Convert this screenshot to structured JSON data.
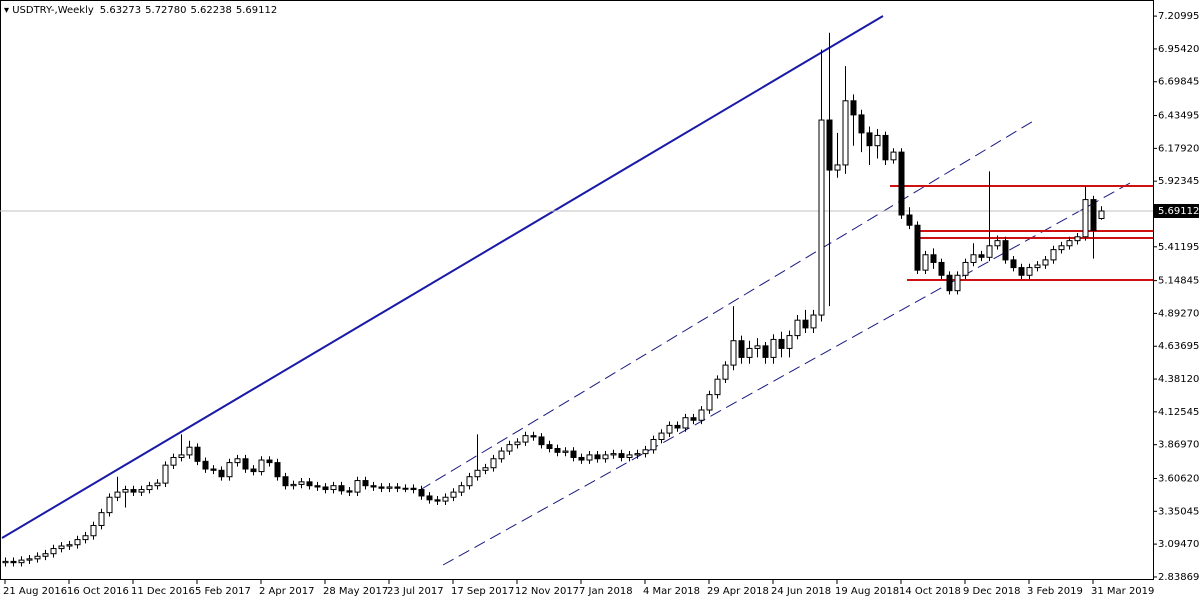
{
  "chart_data": {
    "type": "candlestick",
    "title": "USDTRY-,Weekly",
    "header_ohlc": [
      "5.63273",
      "5.72780",
      "5.62238",
      "5.69112"
    ],
    "current_price": {
      "value": 5.69112,
      "label": "5.69112"
    },
    "ylim": [
      2.815,
      7.32
    ],
    "yticks": [
      {
        "value": 7.20995,
        "label": "7.20995"
      },
      {
        "value": 6.9542,
        "label": "6.95420"
      },
      {
        "value": 6.69845,
        "label": "6.69845"
      },
      {
        "value": 6.43495,
        "label": "6.43495"
      },
      {
        "value": 6.1792,
        "label": "6.17920"
      },
      {
        "value": 5.92345,
        "label": "5.92345"
      },
      {
        "value": 5.41195,
        "label": "5.41195"
      },
      {
        "value": 5.14845,
        "label": "5.14845"
      },
      {
        "value": 4.8927,
        "label": "4.89270"
      },
      {
        "value": 4.63695,
        "label": "4.63695"
      },
      {
        "value": 4.3812,
        "label": "4.38120"
      },
      {
        "value": 4.12545,
        "label": "4.12545"
      },
      {
        "value": 3.8697,
        "label": "3.86970"
      },
      {
        "value": 3.6062,
        "label": "3.60620"
      },
      {
        "value": 3.35045,
        "label": "3.35045"
      },
      {
        "value": 3.0947,
        "label": "3.09470"
      },
      {
        "value": 2.83869,
        "label": "2.83869"
      }
    ],
    "xticks": [
      {
        "value": 0,
        "label": "21 Aug 2016"
      },
      {
        "value": 8,
        "label": "16 Oct 2016"
      },
      {
        "value": 16,
        "label": "11 Dec 2016"
      },
      {
        "value": 24,
        "label": "5 Feb 2017"
      },
      {
        "value": 32,
        "label": "2 Apr 2017"
      },
      {
        "value": 40,
        "label": "28 May 2017"
      },
      {
        "value": 48,
        "label": "23 Jul 2017"
      },
      {
        "value": 56,
        "label": "17 Sep 2017"
      },
      {
        "value": 64,
        "label": "12 Nov 2017"
      },
      {
        "value": 72,
        "label": "7 Jan 2018"
      },
      {
        "value": 80,
        "label": "4 Mar 2018"
      },
      {
        "value": 88,
        "label": "29 Apr 2018"
      },
      {
        "value": 96,
        "label": "24 Jun 2018"
      },
      {
        "value": 104,
        "label": "19 Aug 2018"
      },
      {
        "value": 112,
        "label": "14 Oct 2018"
      },
      {
        "value": 120,
        "label": "9 Dec 2018"
      },
      {
        "value": 128,
        "label": "3 Feb 2019"
      },
      {
        "value": 136,
        "label": "31 Mar 2019"
      }
    ],
    "open": [
      2.95,
      2.96,
      2.95,
      2.97,
      2.98,
      3.0,
      3.02,
      3.06,
      3.08,
      3.09,
      3.13,
      3.16,
      3.24,
      3.34,
      3.46,
      3.5,
      3.52,
      3.5,
      3.52,
      3.55,
      3.57,
      3.71,
      3.77,
      3.79,
      3.85,
      3.74,
      3.68,
      3.67,
      3.62,
      3.73,
      3.76,
      3.68,
      3.66,
      3.75,
      3.73,
      3.62,
      3.55,
      3.56,
      3.58,
      3.55,
      3.54,
      3.52,
      3.55,
      3.51,
      3.5,
      3.59,
      3.55,
      3.54,
      3.53,
      3.54,
      3.53,
      3.53,
      3.52,
      3.47,
      3.44,
      3.43,
      3.46,
      3.5,
      3.55,
      3.62,
      3.67,
      3.69,
      3.76,
      3.82,
      3.87,
      3.89,
      3.94,
      3.93,
      3.87,
      3.84,
      3.81,
      3.82,
      3.77,
      3.75,
      3.79,
      3.76,
      3.79,
      3.8,
      3.77,
      3.79,
      3.8,
      3.83,
      3.91,
      3.96,
      4.02,
      4.0,
      4.08,
      4.06,
      4.14,
      4.26,
      4.38,
      4.49,
      4.68,
      4.55,
      4.62,
      4.64,
      4.55,
      4.69,
      4.62,
      4.72,
      4.84,
      4.78,
      4.88,
      6.4,
      6.01,
      6.05,
      6.55,
      6.44,
      6.3,
      6.2,
      6.28,
      6.09,
      6.15,
      5.66,
      5.58,
      5.23,
      5.35,
      5.29,
      5.19,
      5.07,
      5.19,
      5.29,
      5.35,
      5.33,
      5.42,
      5.46,
      5.31,
      5.25,
      5.19,
      5.25,
      5.27,
      5.31,
      5.39,
      5.42,
      5.46,
      5.49,
      5.78,
      5.63273
    ],
    "high": [
      2.99,
      2.99,
      3.0,
      3.01,
      3.03,
      3.05,
      3.09,
      3.11,
      3.12,
      3.16,
      3.19,
      3.27,
      3.37,
      3.49,
      3.62,
      3.55,
      3.55,
      3.55,
      3.58,
      3.6,
      3.74,
      3.8,
      3.95,
      3.9,
      3.88,
      3.77,
      3.71,
      3.7,
      3.76,
      3.79,
      3.79,
      3.71,
      3.78,
      3.78,
      3.76,
      3.65,
      3.59,
      3.61,
      3.61,
      3.58,
      3.57,
      3.58,
      3.58,
      3.54,
      3.62,
      3.62,
      3.58,
      3.57,
      3.57,
      3.57,
      3.56,
      3.56,
      3.55,
      3.5,
      3.47,
      3.49,
      3.53,
      3.58,
      3.65,
      3.95,
      3.72,
      3.79,
      3.85,
      3.9,
      3.92,
      3.97,
      3.97,
      3.96,
      3.9,
      3.87,
      3.85,
      3.85,
      3.8,
      3.82,
      3.82,
      3.82,
      3.83,
      3.83,
      3.82,
      3.83,
      3.86,
      3.94,
      3.99,
      4.05,
      4.05,
      4.11,
      4.11,
      4.17,
      4.29,
      4.41,
      4.52,
      4.95,
      4.72,
      4.68,
      4.7,
      4.67,
      4.73,
      4.75,
      4.76,
      4.88,
      4.92,
      4.92,
      6.95,
      7.08,
      6.3,
      6.82,
      6.6,
      6.48,
      6.35,
      6.33,
      6.31,
      6.18,
      6.18,
      5.72,
      5.61,
      5.38,
      5.4,
      5.32,
      5.22,
      5.22,
      5.32,
      5.44,
      5.38,
      6.0,
      5.5,
      5.49,
      5.34,
      5.28,
      5.28,
      5.3,
      5.34,
      5.42,
      5.45,
      5.49,
      5.52,
      5.88,
      5.81,
      5.7278
    ],
    "low": [
      2.92,
      2.92,
      2.92,
      2.94,
      2.95,
      2.97,
      2.99,
      3.03,
      3.05,
      3.06,
      3.1,
      3.13,
      3.21,
      3.31,
      3.43,
      3.38,
      3.47,
      3.47,
      3.49,
      3.52,
      3.54,
      3.68,
      3.74,
      3.76,
      3.71,
      3.65,
      3.64,
      3.59,
      3.59,
      3.7,
      3.65,
      3.63,
      3.63,
      3.7,
      3.59,
      3.52,
      3.52,
      3.53,
      3.52,
      3.51,
      3.49,
      3.49,
      3.48,
      3.47,
      3.47,
      3.52,
      3.51,
      3.5,
      3.5,
      3.5,
      3.5,
      3.49,
      3.44,
      3.41,
      3.4,
      3.4,
      3.43,
      3.47,
      3.52,
      3.59,
      3.64,
      3.66,
      3.73,
      3.79,
      3.84,
      3.86,
      3.9,
      3.84,
      3.81,
      3.78,
      3.78,
      3.74,
      3.72,
      3.72,
      3.73,
      3.73,
      3.76,
      3.74,
      3.74,
      3.76,
      3.77,
      3.8,
      3.88,
      3.93,
      3.97,
      3.97,
      4.03,
      4.03,
      4.11,
      4.23,
      4.35,
      4.45,
      4.5,
      4.5,
      4.55,
      4.5,
      4.5,
      4.55,
      4.55,
      4.69,
      4.74,
      4.74,
      4.83,
      4.95,
      5.95,
      5.98,
      6.2,
      6.15,
      6.05,
      6.1,
      6.05,
      6.06,
      5.63,
      5.55,
      5.2,
      5.2,
      5.24,
      5.16,
      5.04,
      5.04,
      5.16,
      5.26,
      5.3,
      5.3,
      5.39,
      5.28,
      5.22,
      5.16,
      5.16,
      5.22,
      5.24,
      5.28,
      5.36,
      5.39,
      5.43,
      5.46,
      5.32,
      5.62238
    ],
    "close": [
      2.96,
      2.95,
      2.97,
      2.98,
      3.0,
      3.02,
      3.06,
      3.08,
      3.09,
      3.13,
      3.16,
      3.24,
      3.34,
      3.46,
      3.5,
      3.52,
      3.5,
      3.52,
      3.55,
      3.57,
      3.71,
      3.77,
      3.79,
      3.85,
      3.74,
      3.68,
      3.67,
      3.62,
      3.73,
      3.76,
      3.68,
      3.66,
      3.75,
      3.73,
      3.62,
      3.55,
      3.56,
      3.58,
      3.55,
      3.54,
      3.52,
      3.55,
      3.51,
      3.5,
      3.59,
      3.55,
      3.54,
      3.53,
      3.54,
      3.53,
      3.53,
      3.52,
      3.47,
      3.44,
      3.43,
      3.46,
      3.5,
      3.55,
      3.62,
      3.67,
      3.69,
      3.76,
      3.82,
      3.87,
      3.89,
      3.94,
      3.93,
      3.87,
      3.84,
      3.81,
      3.82,
      3.77,
      3.75,
      3.79,
      3.76,
      3.79,
      3.8,
      3.77,
      3.79,
      3.8,
      3.83,
      3.91,
      3.96,
      4.02,
      4.0,
      4.08,
      4.06,
      4.14,
      4.26,
      4.38,
      4.49,
      4.68,
      4.55,
      4.62,
      4.64,
      4.55,
      4.69,
      4.62,
      4.72,
      4.84,
      4.78,
      4.88,
      6.4,
      6.01,
      6.05,
      6.55,
      6.44,
      6.3,
      6.2,
      6.28,
      6.09,
      6.15,
      5.66,
      5.58,
      5.23,
      5.35,
      5.29,
      5.19,
      5.07,
      5.19,
      5.29,
      5.35,
      5.33,
      5.42,
      5.46,
      5.31,
      5.25,
      5.19,
      5.25,
      5.27,
      5.31,
      5.39,
      5.42,
      5.46,
      5.49,
      5.78,
      5.54,
      5.69112
    ],
    "up_color": "#ffffff",
    "down_color": "#000000"
  }
}
